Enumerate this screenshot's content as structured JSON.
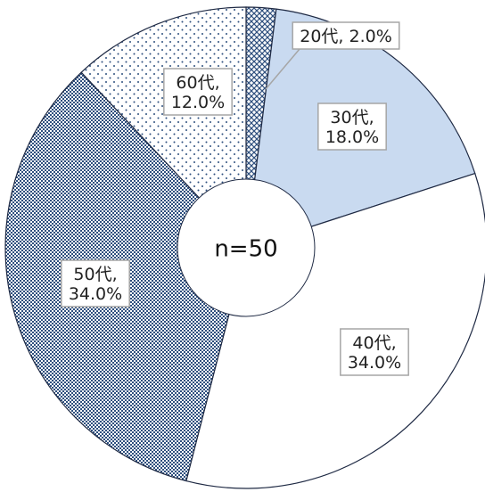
{
  "chart_data": {
    "type": "pie",
    "style": "donut",
    "center_label": "n=50",
    "slices": [
      {
        "category": "20代",
        "label_line": "20代, 2.0%",
        "label_lines": [
          "20代, 2.0%"
        ],
        "value": 2.0,
        "pattern": "crosshatch"
      },
      {
        "category": "30代",
        "label_lines": [
          "30代,",
          "18.0%"
        ],
        "value": 18.0,
        "pattern": "solid",
        "color": "#c9daf0"
      },
      {
        "category": "40代",
        "label_lines": [
          "40代,",
          "34.0%"
        ],
        "value": 34.0,
        "pattern": "none",
        "color": "#ffffff"
      },
      {
        "category": "50代",
        "label_lines": [
          "50代,",
          "34.0%"
        ],
        "value": 34.0,
        "pattern": "dense-dots",
        "color": "#2e4f7e"
      },
      {
        "category": "60代",
        "label_lines": [
          "60代,",
          "12.0%"
        ],
        "value": 12.0,
        "pattern": "sparse-dots",
        "color": "#2e4f7e"
      }
    ],
    "start": "top",
    "direction": "clockwise",
    "label_border_color": "#a6a6a6",
    "outline_color": "#1f2a44"
  }
}
